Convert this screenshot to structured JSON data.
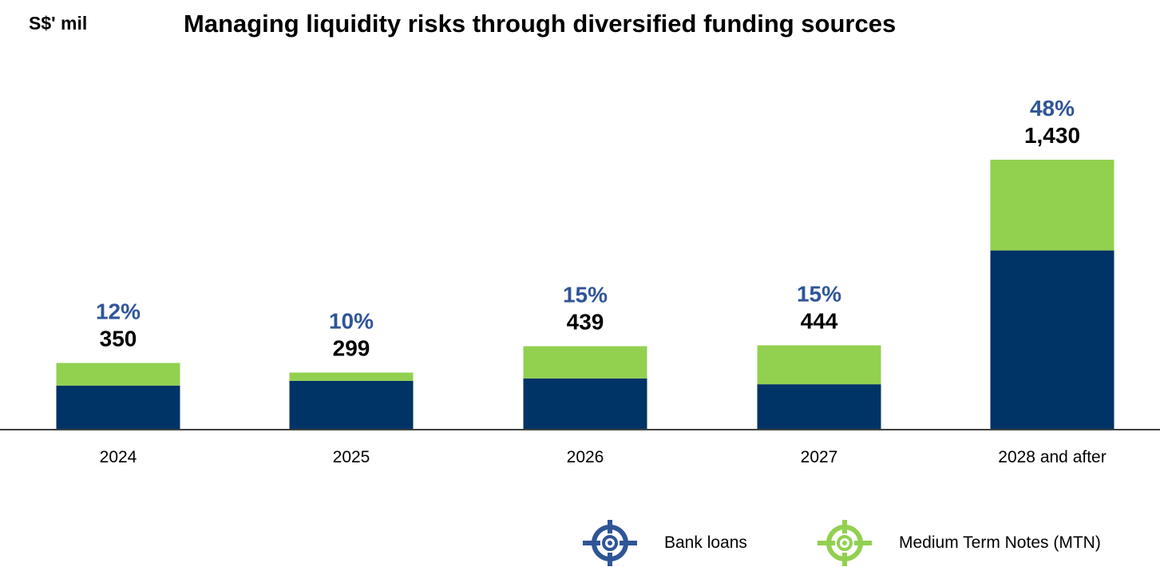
{
  "chart_data": {
    "type": "bar",
    "stacked": true,
    "title": "Managing liquidity risks through diversified funding sources",
    "unit_label": "S$' mil",
    "categories": [
      "2024",
      "2025",
      "2026",
      "2027",
      "2028 and after"
    ],
    "totals": [
      "350",
      "299",
      "439",
      "444",
      "1,430"
    ],
    "total_values": [
      350,
      299,
      439,
      444,
      1430
    ],
    "percentages": [
      "12%",
      "10%",
      "15%",
      "15%",
      "48%"
    ],
    "series": [
      {
        "name": "Bank loans",
        "color": "#003366",
        "values": [
          230,
          255,
          268,
          237,
          948
        ]
      },
      {
        "name": "Medium Term Notes (MTN)",
        "color": "#92D050",
        "values": [
          120,
          44,
          171,
          207,
          482
        ]
      }
    ],
    "ylim": [
      0,
      1430
    ],
    "grid": false,
    "legend_position": "bottom-right",
    "colors": {
      "percent_text": "#2F5597",
      "total_text": "#000000",
      "axis": "#000000"
    }
  }
}
